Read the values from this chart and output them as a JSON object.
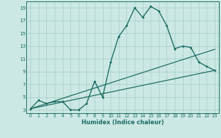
{
  "title": "",
  "xlabel": "Humidex (Indice chaleur)",
  "ylabel": "",
  "background_color": "#cce8e4",
  "grid_color": "#aacfcc",
  "line_color": "#1a6b60",
  "xlim": [
    -0.5,
    23.5
  ],
  "ylim": [
    2.5,
    20.0
  ],
  "xticks": [
    0,
    1,
    2,
    3,
    4,
    5,
    6,
    7,
    8,
    9,
    10,
    11,
    12,
    13,
    14,
    15,
    16,
    17,
    18,
    19,
    20,
    21,
    22,
    23
  ],
  "yticks": [
    3,
    5,
    7,
    9,
    11,
    13,
    15,
    17,
    19
  ],
  "line1_x": [
    0,
    1,
    2,
    3,
    4,
    5,
    6,
    7,
    8,
    9,
    10,
    11,
    12,
    13,
    14,
    15,
    16,
    17,
    18,
    19,
    20,
    21,
    22,
    23
  ],
  "line1_y": [
    3.2,
    4.5,
    4.0,
    4.3,
    4.3,
    3.0,
    3.0,
    4.0,
    7.5,
    5.0,
    10.5,
    14.5,
    16.2,
    19.0,
    17.5,
    19.2,
    18.5,
    16.2,
    12.6,
    13.0,
    12.8,
    10.5,
    9.8,
    9.2
  ],
  "line2_x": [
    0,
    23
  ],
  "line2_y": [
    3.2,
    9.2
  ],
  "line3_x": [
    0,
    23
  ],
  "line3_y": [
    3.2,
    12.5
  ]
}
